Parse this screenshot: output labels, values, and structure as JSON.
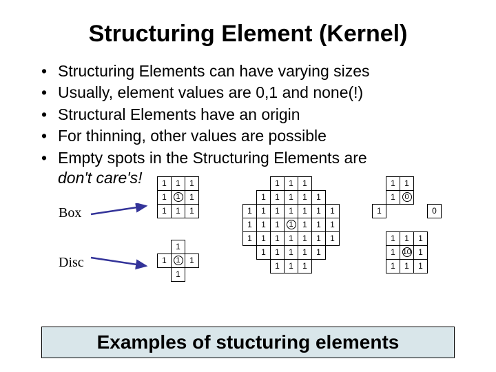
{
  "title": "Structuring Element (Kernel)",
  "bullets": [
    "Structuring Elements can have varying sizes",
    "Usually, element values are 0,1 and none(!)",
    "Structural Elements have an origin",
    "For thinning, other values are possible",
    "Empty spots in the Structuring Elements are"
  ],
  "bullet_last_italic": "don't care's!",
  "labels": {
    "box": "Box",
    "disc": "Disc"
  },
  "caption": "Examples of stucturing elements",
  "colors": {
    "caption_bg": "#d9e6ea",
    "arrow": "#333399"
  },
  "grids": {
    "box_small": {
      "rows": [
        [
          "1",
          "1",
          "1"
        ],
        [
          "1",
          "1c",
          "1"
        ],
        [
          "1",
          "1",
          "1"
        ]
      ]
    },
    "disc_small": {
      "rows": [
        [
          "",
          "1",
          ""
        ],
        [
          "1",
          "1c",
          "1"
        ],
        [
          "",
          "1",
          ""
        ]
      ]
    },
    "box_large": {
      "rows": [
        [
          "",
          "",
          "1",
          "1",
          "1",
          "",
          ""
        ],
        [
          "",
          "1",
          "1",
          "1",
          "1",
          "1",
          ""
        ],
        [
          "1",
          "1",
          "1",
          "1",
          "1",
          "1",
          "1"
        ],
        [
          "1",
          "1",
          "1",
          "1c",
          "1",
          "1",
          "1"
        ],
        [
          "1",
          "1",
          "1",
          "1",
          "1",
          "1",
          "1"
        ],
        [
          "",
          "1",
          "1",
          "1",
          "1",
          "1",
          ""
        ],
        [
          "",
          "",
          "1",
          "1",
          "1",
          "",
          ""
        ]
      ]
    },
    "disc_large": {
      "rows": [
        [
          "",
          "1",
          "1",
          "",
          ""
        ],
        [
          "",
          "1",
          "0c",
          "",
          ""
        ],
        [
          "1",
          "",
          "",
          "",
          "0"
        ],
        [
          "",
          "",
          "",
          "",
          ""
        ],
        [
          "",
          "1",
          "1",
          "1",
          ""
        ],
        [
          "",
          "1",
          "1c0",
          "1",
          ""
        ],
        [
          "",
          "1",
          "1",
          "1",
          ""
        ]
      ]
    }
  }
}
